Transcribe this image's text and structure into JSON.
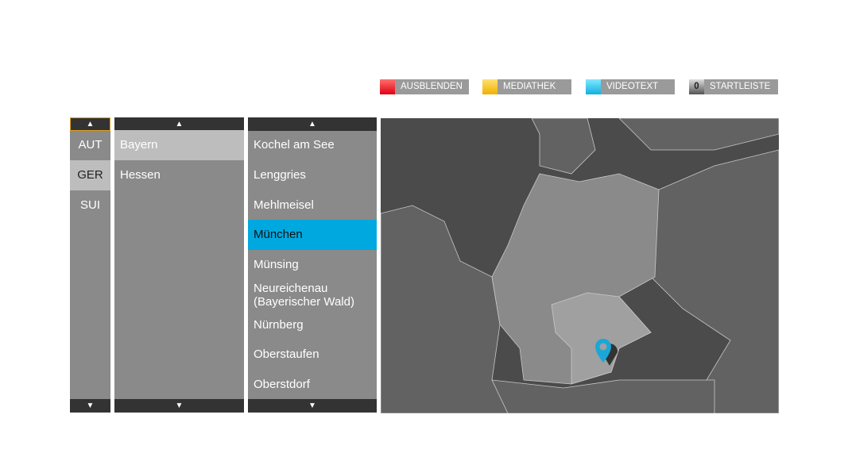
{
  "color_keys": [
    {
      "label": "AUSBLENDEN",
      "color": "#e8141c",
      "icon": "red-key"
    },
    {
      "label": "MEDIATHEK",
      "color": "#f2c21a",
      "icon": "yellow-key"
    },
    {
      "label": "VIDEOTEXT",
      "color": "#25c0ea",
      "icon": "blue-key"
    },
    {
      "label": "STARTLEISTE",
      "key": "0",
      "icon": "zero-key"
    }
  ],
  "countries": {
    "items": [
      "AUT",
      "GER",
      "SUI"
    ],
    "selected": "GER"
  },
  "regions": {
    "items": [
      "Bayern",
      "Hessen"
    ],
    "selected": "Bayern"
  },
  "cities": {
    "items": [
      "Kochel am See",
      "Lenggries",
      "Mehlmeisel",
      "München",
      "Münsing",
      "Neureichenau (Bayerischer Wald)",
      "Nürnberg",
      "Oberstaufen",
      "Oberstdorf"
    ],
    "selected": "München"
  },
  "arrows": {
    "up": "▲",
    "down": "▼"
  },
  "map": {
    "pin_color": "#1aa7d8",
    "highlighted_region": "Bayern"
  }
}
